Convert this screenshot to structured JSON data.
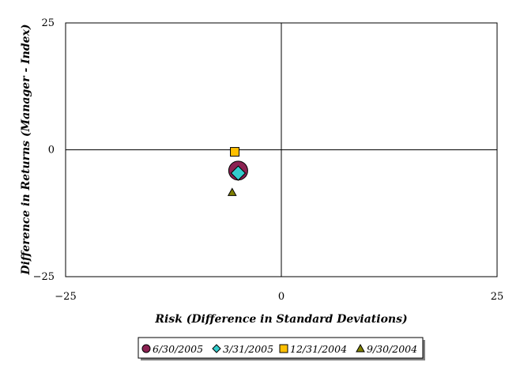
{
  "chart_data": {
    "type": "scatter",
    "title": "",
    "xlabel": "Risk (Difference in Standard Deviations)",
    "ylabel": "Difference in Returns (Manager - Index)",
    "xlim": [
      -25,
      25
    ],
    "ylim": [
      -25,
      25
    ],
    "x_ticks": [
      "−25",
      "0",
      "25"
    ],
    "y_ticks": [
      "25",
      "0",
      "−25"
    ],
    "grid": false,
    "legend_position": "bottom",
    "series": [
      {
        "name": "6/30/2005",
        "marker": "circle",
        "color": "#8b2252",
        "x": [
          -5.0
        ],
        "y": [
          -4.1
        ]
      },
      {
        "name": "3/31/2005",
        "marker": "diamond",
        "color": "#33cccc",
        "x": [
          -5.0
        ],
        "y": [
          -4.6
        ]
      },
      {
        "name": "12/31/2004",
        "marker": "square",
        "color": "#ffc000",
        "x": [
          -5.4
        ],
        "y": [
          -0.4
        ]
      },
      {
        "name": "9/30/2004",
        "marker": "triangle",
        "color": "#808000",
        "x": [
          -5.7
        ],
        "y": [
          -8.4
        ]
      }
    ]
  }
}
